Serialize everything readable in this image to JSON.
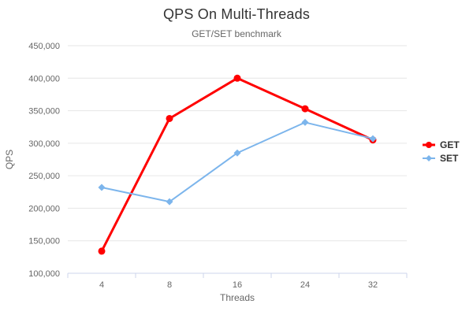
{
  "chart": {
    "title": "QPS On Multi-Threads",
    "subtitle": "GET/SET benchmark"
  },
  "chart_data": {
    "type": "line",
    "categories": [
      "4",
      "8",
      "16",
      "24",
      "32"
    ],
    "series": [
      {
        "name": "GET",
        "color": "#ff0000",
        "marker": "circle",
        "line_width": 3,
        "values": [
          134000,
          338000,
          400000,
          353000,
          305000
        ]
      },
      {
        "name": "SET",
        "color": "#7cb5ec",
        "marker": "diamond",
        "line_width": 2,
        "values": [
          232000,
          210000,
          285000,
          332000,
          307000
        ]
      }
    ],
    "xlabel": "Threads",
    "ylabel": "QPS",
    "ylim": [
      100000,
      450000
    ],
    "ytick_step": 50000,
    "grid": true,
    "legend_position": "right",
    "colors": {
      "gridline": "#e6e6e6",
      "axis_line": "#ccd6eb",
      "tick_label": "#666666",
      "axis_title": "#666666",
      "title": "#333333",
      "subtitle": "#666666",
      "legend_text": "#333333"
    }
  }
}
